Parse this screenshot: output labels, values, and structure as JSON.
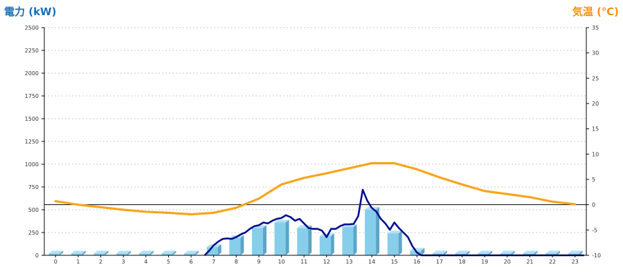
{
  "chart_data": {
    "type": "bar",
    "ylabel_left": "電力 (kW)",
    "ylabel_right": "気温 (℃)",
    "x": [
      "0",
      "1",
      "2",
      "3",
      "4",
      "5",
      "6",
      "7",
      "8",
      "9",
      "10",
      "11",
      "12",
      "13",
      "14",
      "15",
      "16",
      "17",
      "18",
      "19",
      "20",
      "21",
      "22",
      "23"
    ],
    "ylim_left": [
      0,
      2500
    ],
    "yticks_left": [
      "0",
      "250",
      "500",
      "750",
      "1000",
      "1250",
      "1500",
      "1750",
      "2000",
      "2250",
      "2500"
    ],
    "ylim_right": [
      -10,
      35
    ],
    "yticks_right": [
      "-10",
      "-5",
      "0",
      "5",
      "10",
      "15",
      "20",
      "25",
      "30",
      "35"
    ],
    "grid": "horizontal-dashed",
    "series": [
      {
        "kind": "bar",
        "axis": "left",
        "values": [
          20,
          20,
          20,
          20,
          20,
          20,
          20,
          90,
          190,
          300,
          360,
          300,
          210,
          310,
          500,
          240,
          50,
          20,
          20,
          20,
          20,
          20,
          20,
          20
        ]
      },
      {
        "kind": "line",
        "axis": "left",
        "x": [
          6.6,
          6.8,
          7.0,
          7.2,
          7.4,
          7.6,
          7.8,
          8.0,
          8.2,
          8.4,
          8.6,
          8.8,
          9.0,
          9.2,
          9.4,
          9.6,
          9.8,
          10.0,
          10.2,
          10.4,
          10.6,
          10.8,
          11.0,
          11.2,
          11.4,
          11.6,
          11.8,
          12.0,
          12.2,
          12.4,
          12.6,
          12.8,
          13.0,
          13.2,
          13.4,
          13.6,
          13.8,
          14.0,
          14.2,
          14.4,
          14.6,
          14.8,
          15.0,
          15.2,
          15.4,
          15.6,
          15.8,
          16.0,
          16.2,
          16.5,
          17,
          18,
          19,
          20,
          21,
          22,
          23.4
        ],
        "values": [
          0,
          50,
          110,
          150,
          180,
          185,
          180,
          200,
          230,
          250,
          290,
          320,
          330,
          360,
          350,
          380,
          400,
          410,
          440,
          420,
          380,
          400,
          350,
          300,
          290,
          290,
          270,
          200,
          290,
          290,
          320,
          340,
          340,
          345,
          430,
          720,
          600,
          520,
          480,
          400,
          350,
          280,
          360,
          300,
          250,
          200,
          100,
          30,
          0,
          0,
          0,
          0,
          0,
          0,
          0,
          0,
          0
        ]
      },
      {
        "kind": "line",
        "axis": "right",
        "x": [
          0,
          1,
          2,
          3,
          4,
          5,
          6,
          7,
          8,
          9,
          10,
          11,
          12,
          13,
          14,
          15,
          16,
          17,
          18,
          19,
          20,
          21,
          22,
          23
        ],
        "values": [
          0.7,
          0.0,
          -0.5,
          -1.0,
          -1.4,
          -1.6,
          -1.9,
          -1.6,
          -0.6,
          1.2,
          4.0,
          5.3,
          6.2,
          7.2,
          8.2,
          8.2,
          7.0,
          5.4,
          4.0,
          2.7,
          2.1,
          1.5,
          0.6,
          0.1
        ]
      }
    ]
  },
  "colors": {
    "bar_front": "#87ceeb",
    "bar_side": "#5aa6c8",
    "bar_top": "#b4e0f4",
    "power_line": "#000f8a",
    "temp_line": "#f7a51b",
    "left_title": "#1a6fb7",
    "right_title": "#f29111",
    "grid": "#c8c8c8",
    "zero_line": "#000000"
  }
}
